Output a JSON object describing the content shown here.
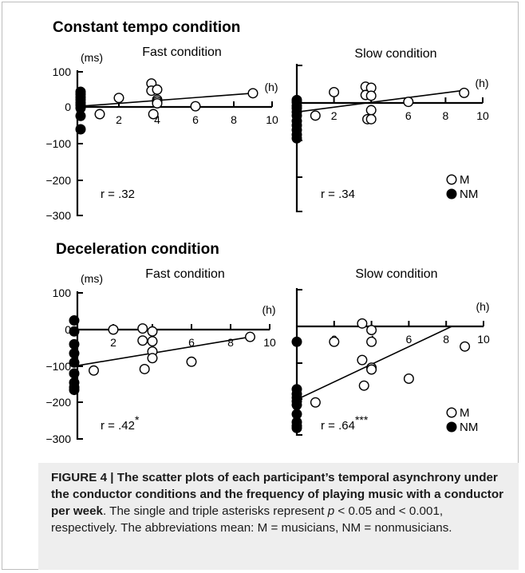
{
  "sections": [
    {
      "title": "Constant tempo condition"
    },
    {
      "title": "Deceleration condition"
    }
  ],
  "chart_data": [
    {
      "type": "scatter",
      "title": "Fast condition",
      "section": "Constant tempo condition",
      "xlabel": "(h)",
      "ylabel": "(ms)",
      "xlim": [
        0,
        10
      ],
      "ylim": [
        -300,
        100
      ],
      "xticks": [
        "2",
        "4",
        "6",
        "8",
        "10"
      ],
      "yticks": [
        "100",
        "0",
        "−100",
        "−200",
        "−300"
      ],
      "series": [
        {
          "name": "M",
          "marker": "open",
          "points": [
            [
              1,
              -20
            ],
            [
              2,
              25
            ],
            [
              3.7,
              65
            ],
            [
              3.7,
              45
            ],
            [
              3.8,
              -20
            ],
            [
              4,
              48
            ],
            [
              4,
              20
            ],
            [
              4,
              15
            ],
            [
              4,
              10
            ],
            [
              6,
              2
            ],
            [
              9,
              38
            ]
          ]
        },
        {
          "name": "NM",
          "marker": "filled",
          "points": [
            [
              0,
              42
            ],
            [
              0,
              35
            ],
            [
              0,
              27
            ],
            [
              0,
              20
            ],
            [
              0,
              12
            ],
            [
              0,
              5
            ],
            [
              0,
              -3
            ],
            [
              0,
              -25
            ],
            [
              0,
              -62
            ]
          ]
        }
      ],
      "regression": {
        "from": [
          0,
          2
        ],
        "to": [
          9,
          38
        ]
      },
      "r_label": "r = .32",
      "sig": ""
    },
    {
      "type": "scatter",
      "title": "Slow condition",
      "section": "Constant tempo condition",
      "xlabel": "(h)",
      "ylabel": "",
      "xlim": [
        0,
        10
      ],
      "ylim": [
        -300,
        100
      ],
      "xticks": [
        "2",
        "4",
        "6",
        "8",
        "10"
      ],
      "yticks": [],
      "series": [
        {
          "name": "M",
          "marker": "open",
          "points": [
            [
              1,
              -35
            ],
            [
              2,
              30
            ],
            [
              3.7,
              45
            ],
            [
              3.7,
              22
            ],
            [
              3.8,
              -45
            ],
            [
              4,
              42
            ],
            [
              4,
              20
            ],
            [
              4,
              -20
            ],
            [
              4,
              -45
            ],
            [
              6,
              3
            ],
            [
              9,
              28
            ]
          ]
        },
        {
          "name": "NM",
          "marker": "filled",
          "points": [
            [
              0,
              8
            ],
            [
              0,
              2
            ],
            [
              0,
              -8
            ],
            [
              0,
              -15
            ],
            [
              0,
              -25
            ],
            [
              0,
              -35
            ],
            [
              0,
              -50
            ],
            [
              0,
              -62
            ],
            [
              0,
              -75
            ],
            [
              0,
              -88
            ],
            [
              0,
              -98
            ]
          ]
        }
      ],
      "regression": {
        "from": [
          0,
          -25
        ],
        "to": [
          9,
          35
        ]
      },
      "r_label": "r = .34",
      "sig": "",
      "legend": [
        {
          "symbol": "○",
          "label": "M"
        },
        {
          "symbol": "●",
          "label": "NM"
        }
      ]
    },
    {
      "type": "scatter",
      "title": "Fast condition",
      "section": "Deceleration condition",
      "xlabel": "(h)",
      "ylabel": "(ms)",
      "xlim": [
        0,
        10
      ],
      "ylim": [
        -300,
        100
      ],
      "xticks": [
        "2",
        "4",
        "6",
        "8",
        "10"
      ],
      "yticks": [
        "100",
        "0",
        "−100",
        "−200",
        "−300"
      ],
      "series": [
        {
          "name": "M",
          "marker": "open",
          "points": [
            [
              1,
              -112
            ],
            [
              2,
              0
            ],
            [
              3.5,
              3
            ],
            [
              3.5,
              -30
            ],
            [
              3.6,
              -108
            ],
            [
              4,
              -5
            ],
            [
              4,
              -32
            ],
            [
              4,
              -60
            ],
            [
              4,
              -78
            ],
            [
              6,
              -88
            ],
            [
              9,
              -20
            ]
          ]
        },
        {
          "name": "NM",
          "marker": "filled",
          "points": [
            [
              0,
              25
            ],
            [
              0,
              -5
            ],
            [
              0,
              -40
            ],
            [
              0,
              -65
            ],
            [
              0,
              -90
            ],
            [
              0,
              -120
            ],
            [
              0,
              -145
            ],
            [
              0,
              -158
            ],
            [
              0,
              -165
            ]
          ]
        }
      ],
      "regression": {
        "from": [
          0,
          -100
        ],
        "to": [
          9,
          -20
        ]
      },
      "r_label": "r = .42",
      "sig": "*"
    },
    {
      "type": "scatter",
      "title": "Slow condition",
      "section": "Deceleration condition",
      "xlabel": "(h)",
      "ylabel": "",
      "xlim": [
        0,
        10
      ],
      "ylim": [
        -300,
        100
      ],
      "xticks": [
        "2",
        "4",
        "6",
        "8",
        "10"
      ],
      "yticks": [],
      "series": [
        {
          "name": "M",
          "marker": "open",
          "points": [
            [
              1,
              -208
            ],
            [
              2,
              -42
            ],
            [
              3.5,
              8
            ],
            [
              3.5,
              -92
            ],
            [
              3.6,
              -162
            ],
            [
              4,
              -10
            ],
            [
              4,
              -42
            ],
            [
              4,
              -113
            ],
            [
              4,
              -118
            ],
            [
              6,
              -143
            ],
            [
              9,
              -55
            ]
          ]
        },
        {
          "name": "NM",
          "marker": "filled",
          "points": [
            [
              0,
              -42
            ],
            [
              0,
              -172
            ],
            [
              0,
              -185
            ],
            [
              0,
              -195
            ],
            [
              0,
              -205
            ],
            [
              0,
              -215
            ],
            [
              0,
              -240
            ],
            [
              0,
              -262
            ],
            [
              0,
              -272
            ],
            [
              0,
              -278
            ]
          ]
        }
      ],
      "regression": {
        "from": [
          0,
          -200
        ],
        "to": [
          8.3,
          0
        ]
      },
      "r_label": "r = .64",
      "sig": "***",
      "legend": [
        {
          "symbol": "○",
          "label": "M"
        },
        {
          "symbol": "●",
          "label": "NM"
        }
      ]
    }
  ],
  "caption": {
    "lead": "FIGURE 4 | The scatter plots of each participant’s temporal asynchrony under the conductor conditions and the frequency of playing music with a conductor per week",
    "text1": ". The single and triple asterisks represent ",
    "p": "p",
    "text2": " < 0.05 and < 0.001, respectively. The abbreviations mean: M = musicians, NM = nonmusicians."
  }
}
